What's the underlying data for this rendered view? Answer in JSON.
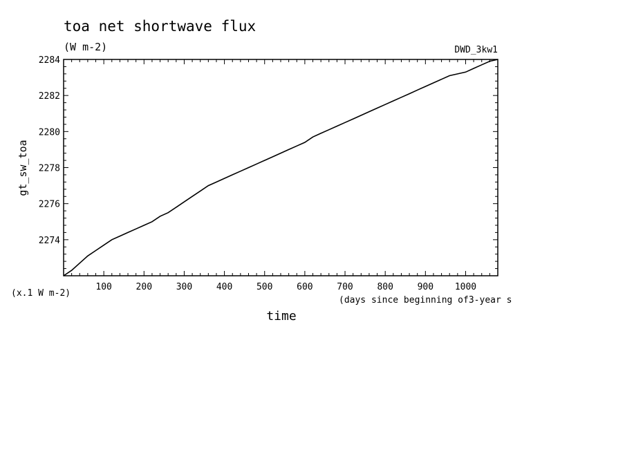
{
  "chart_data": {
    "type": "line",
    "title": "toa net shortwave flux",
    "subtitle": "(W m-2)",
    "tag": "DWD_3kw1",
    "xlabel": "time",
    "x_unit_note": "(days since beginning of3-year s",
    "ylabel": "gt_sw_toa",
    "y_unit_note": "(x.1 W m-2)",
    "xlim": [
      0,
      1080
    ],
    "ylim": [
      2272,
      2284
    ],
    "x_ticks": [
      100,
      200,
      300,
      400,
      500,
      600,
      700,
      800,
      900,
      1000
    ],
    "y_ticks": [
      2274,
      2276,
      2278,
      2280,
      2282,
      2284
    ],
    "grid": false,
    "series": [
      {
        "x": [
          0,
          20,
          40,
          60,
          80,
          100,
          120,
          140,
          160,
          180,
          200,
          220,
          240,
          260,
          280,
          300,
          320,
          340,
          360,
          380,
          400,
          420,
          440,
          460,
          480,
          500,
          520,
          540,
          560,
          580,
          600,
          620,
          640,
          660,
          680,
          700,
          720,
          740,
          760,
          780,
          800,
          820,
          840,
          860,
          880,
          900,
          920,
          940,
          960,
          980,
          1000,
          1020,
          1040,
          1060,
          1080
        ],
        "values": [
          2272.0,
          2272.3,
          2272.7,
          2273.1,
          2273.4,
          2273.7,
          2274.0,
          2274.2,
          2274.4,
          2274.6,
          2274.8,
          2275.0,
          2275.3,
          2275.5,
          2275.8,
          2276.1,
          2276.4,
          2276.7,
          2277.0,
          2277.2,
          2277.4,
          2277.6,
          2277.8,
          2278.0,
          2278.2,
          2278.4,
          2278.6,
          2278.8,
          2279.0,
          2279.2,
          2279.4,
          2279.7,
          2279.9,
          2280.1,
          2280.3,
          2280.5,
          2280.7,
          2280.9,
          2281.1,
          2281.3,
          2281.5,
          2281.7,
          2281.9,
          2282.1,
          2282.3,
          2282.5,
          2282.7,
          2282.9,
          2283.1,
          2283.2,
          2283.3,
          2283.5,
          2283.7,
          2283.9,
          2284.0
        ]
      }
    ]
  }
}
